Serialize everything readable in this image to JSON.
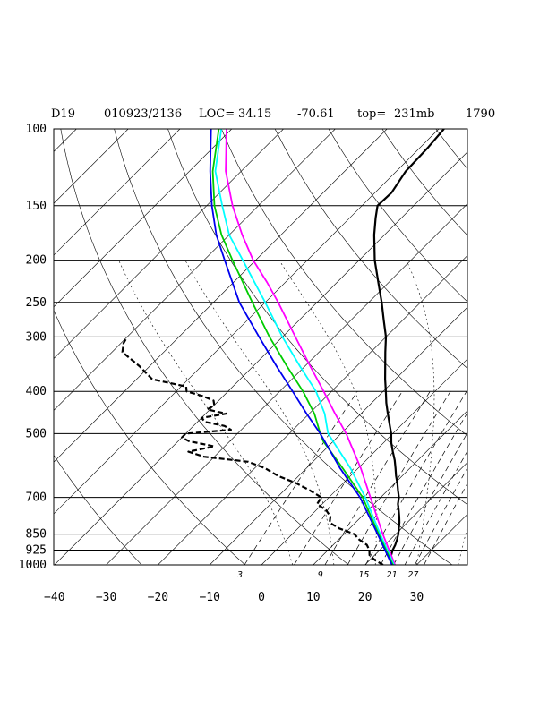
{
  "header": {
    "station": "D19",
    "datetime": "010923/2136",
    "loc_label": "LOC=",
    "lat": "34.15",
    "lon": "-70.61",
    "top_label": "top=",
    "top_value": "231mb",
    "extra": "1790"
  },
  "chart_data": {
    "type": "line",
    "subtype": "skew-t log-p sounding diagram",
    "pressure_levels_hpa": [
      100,
      150,
      200,
      250,
      300,
      400,
      500,
      700,
      850,
      925,
      1000
    ],
    "pressure_tick_labels": [
      "100",
      "150",
      "200",
      "250",
      "300",
      "400",
      "500",
      "700",
      "850",
      "925",
      "1000"
    ],
    "temperature_ticks_c": [
      -40,
      -30,
      -20,
      -10,
      0,
      10,
      20,
      30
    ],
    "temperature_tick_labels": [
      "−40",
      "−30",
      "−20",
      "−10",
      "0",
      "10",
      "20",
      "30"
    ],
    "mixing_ratio_labels": [
      "3",
      "9",
      "15",
      "21",
      "27"
    ],
    "skew": "isotherms skewed 45 degrees to the right",
    "grid": true,
    "series": [
      {
        "style": "solid-black-thick",
        "color": "#000000",
        "points": [
          [
            1000,
            25.5
          ],
          [
            975,
            24.0
          ],
          [
            950,
            23.2
          ],
          [
            925,
            22.5
          ],
          [
            900,
            22.0
          ],
          [
            875,
            21.3
          ],
          [
            850,
            20.5
          ],
          [
            825,
            19.5
          ],
          [
            800,
            18.5
          ],
          [
            775,
            17.3
          ],
          [
            750,
            16.0
          ],
          [
            725,
            14.6
          ],
          [
            700,
            13.5
          ],
          [
            675,
            12.0
          ],
          [
            650,
            10.5
          ],
          [
            625,
            8.8
          ],
          [
            600,
            7.2
          ],
          [
            575,
            5.5
          ],
          [
            550,
            3.5
          ],
          [
            525,
            1.5
          ],
          [
            500,
            -0.3
          ],
          [
            475,
            -2.5
          ],
          [
            450,
            -4.8
          ],
          [
            425,
            -7.2
          ],
          [
            400,
            -9.5
          ],
          [
            375,
            -12.0
          ],
          [
            350,
            -14.5
          ],
          [
            325,
            -17.2
          ],
          [
            300,
            -20.0
          ],
          [
            275,
            -23.6
          ],
          [
            250,
            -27.5
          ],
          [
            225,
            -32.0
          ],
          [
            200,
            -37.0
          ],
          [
            175,
            -42.0
          ],
          [
            160,
            -45.0
          ],
          [
            150,
            -47.0
          ],
          [
            140,
            -46.8
          ],
          [
            125,
            -48.2
          ],
          [
            110,
            -48.5
          ],
          [
            100,
            -49.0
          ]
        ]
      },
      {
        "style": "dashed-black-thick",
        "color": "#000000",
        "points": [
          [
            1000,
            23.5
          ],
          [
            975,
            21.0
          ],
          [
            950,
            19.0
          ],
          [
            925,
            18.0
          ],
          [
            900,
            16.5
          ],
          [
            875,
            14.0
          ],
          [
            850,
            12.0
          ],
          [
            825,
            8.0
          ],
          [
            800,
            5.0
          ],
          [
            775,
            4.0
          ],
          [
            750,
            2.0
          ],
          [
            725,
            -1.0
          ],
          [
            700,
            -1.5
          ],
          [
            675,
            -5.0
          ],
          [
            650,
            -9.0
          ],
          [
            625,
            -14.0
          ],
          [
            600,
            -18.0
          ],
          [
            580,
            -22.5
          ],
          [
            565,
            -32.0
          ],
          [
            550,
            -36.0
          ],
          [
            535,
            -32.0
          ],
          [
            520,
            -38.0
          ],
          [
            510,
            -40.0
          ],
          [
            500,
            -40.0
          ],
          [
            490,
            -32.0
          ],
          [
            480,
            -34.0
          ],
          [
            470,
            -38.5
          ],
          [
            460,
            -40.0
          ],
          [
            450,
            -36.0
          ],
          [
            440,
            -40.5
          ],
          [
            430,
            -40.0
          ],
          [
            420,
            -41.0
          ],
          [
            410,
            -44.0
          ],
          [
            400,
            -48.0
          ],
          [
            390,
            -49.0
          ],
          [
            375,
            -57.0
          ],
          [
            350,
            -62.0
          ],
          [
            325,
            -68.0
          ],
          [
            310,
            -69.5
          ],
          [
            300,
            -70.0
          ]
        ]
      },
      {
        "style": "solid-magenta",
        "color": "#ff00ff",
        "points": [
          [
            1000,
            25.8
          ],
          [
            850,
            17.5
          ],
          [
            700,
            8.0
          ],
          [
            600,
            0.5
          ],
          [
            500,
            -9.0
          ],
          [
            450,
            -15.0
          ],
          [
            400,
            -21.5
          ],
          [
            350,
            -29.0
          ],
          [
            300,
            -37.5
          ],
          [
            250,
            -47.5
          ],
          [
            225,
            -53.5
          ],
          [
            200,
            -60.5
          ],
          [
            175,
            -67.5
          ],
          [
            150,
            -75.0
          ],
          [
            125,
            -83.0
          ],
          [
            100,
            -91.0
          ]
        ]
      },
      {
        "style": "solid-cyan",
        "color": "#00ffff",
        "points": [
          [
            1000,
            25.6
          ],
          [
            850,
            17.0
          ],
          [
            700,
            7.0
          ],
          [
            600,
            -1.5
          ],
          [
            500,
            -12.5
          ],
          [
            450,
            -17.0
          ],
          [
            400,
            -23.0
          ],
          [
            350,
            -31.0
          ],
          [
            300,
            -40.0
          ],
          [
            250,
            -50.0
          ],
          [
            200,
            -62.5
          ],
          [
            175,
            -70.0
          ],
          [
            150,
            -77.0
          ],
          [
            125,
            -85.0
          ],
          [
            100,
            -92.0
          ]
        ]
      },
      {
        "style": "solid-green",
        "color": "#00cc00",
        "points": [
          [
            1000,
            25.4
          ],
          [
            850,
            16.7
          ],
          [
            700,
            6.5
          ],
          [
            600,
            -3.0
          ],
          [
            520,
            -12.0
          ],
          [
            500,
            -14.0
          ],
          [
            450,
            -19.0
          ],
          [
            400,
            -25.5
          ],
          [
            350,
            -33.5
          ],
          [
            300,
            -42.5
          ],
          [
            250,
            -52.5
          ],
          [
            200,
            -64.5
          ],
          [
            175,
            -71.5
          ],
          [
            150,
            -78.5
          ],
          [
            125,
            -85.5
          ],
          [
            100,
            -92.5
          ]
        ]
      },
      {
        "style": "solid-blue",
        "color": "#0000ee",
        "points": [
          [
            1000,
            25.2
          ],
          [
            850,
            16.5
          ],
          [
            700,
            6.0
          ],
          [
            600,
            -3.5
          ],
          [
            500,
            -14.0
          ],
          [
            450,
            -20.5
          ],
          [
            400,
            -27.5
          ],
          [
            350,
            -35.5
          ],
          [
            300,
            -44.5
          ],
          [
            250,
            -55.0
          ],
          [
            200,
            -66.0
          ],
          [
            175,
            -72.5
          ],
          [
            150,
            -79.0
          ],
          [
            125,
            -86.0
          ],
          [
            100,
            -94.0
          ]
        ]
      }
    ]
  }
}
